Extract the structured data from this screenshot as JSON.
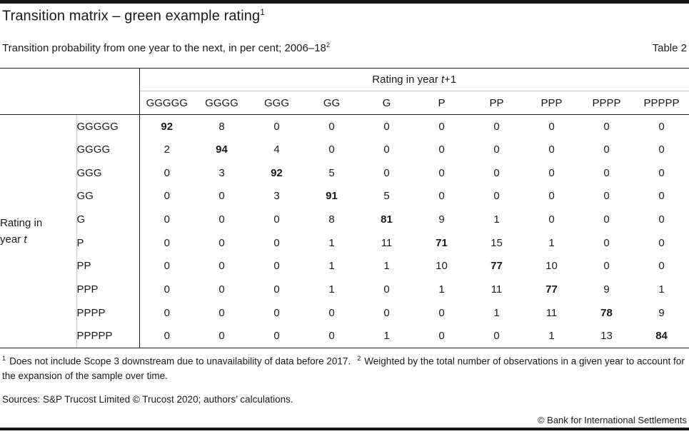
{
  "page": {
    "title": {
      "text": "Transition matrix – green example rating",
      "sup": "1"
    },
    "subtitle": {
      "text": "Transition probability from one year to the next, in per cent; 2006–18",
      "sup": "2"
    },
    "table_label": "Table 2"
  },
  "matrix": {
    "col_group_header": {
      "prefix": "Rating in year ",
      "italic": "t",
      "suffix": "+1"
    },
    "row_group_header": {
      "line1": "Rating in",
      "line2_prefix": "year ",
      "line2_italic": "t"
    },
    "columns": [
      "GGGGG",
      "GGGG",
      "GGG",
      "GG",
      "G",
      "P",
      "PP",
      "PPP",
      "PPPP",
      "PPPPP"
    ],
    "rows": [
      {
        "label": "GGGGG",
        "values": [
          92,
          8,
          0,
          0,
          0,
          0,
          0,
          0,
          0,
          0
        ]
      },
      {
        "label": "GGGG",
        "values": [
          2,
          94,
          4,
          0,
          0,
          0,
          0,
          0,
          0,
          0
        ]
      },
      {
        "label": "GGG",
        "values": [
          0,
          3,
          92,
          5,
          0,
          0,
          0,
          0,
          0,
          0
        ]
      },
      {
        "label": "GG",
        "values": [
          0,
          0,
          3,
          91,
          5,
          0,
          0,
          0,
          0,
          0
        ]
      },
      {
        "label": "G",
        "values": [
          0,
          0,
          0,
          8,
          81,
          9,
          1,
          0,
          0,
          0
        ]
      },
      {
        "label": "P",
        "values": [
          0,
          0,
          0,
          1,
          11,
          71,
          15,
          1,
          0,
          0
        ]
      },
      {
        "label": "PP",
        "values": [
          0,
          0,
          0,
          1,
          1,
          10,
          77,
          10,
          0,
          0
        ]
      },
      {
        "label": "PPP",
        "values": [
          0,
          0,
          0,
          1,
          0,
          1,
          11,
          77,
          9,
          1
        ]
      },
      {
        "label": "PPPP",
        "values": [
          0,
          0,
          0,
          0,
          0,
          0,
          1,
          11,
          78,
          9
        ]
      },
      {
        "label": "PPPPP",
        "values": [
          0,
          0,
          0,
          0,
          1,
          0,
          0,
          1,
          13,
          84
        ]
      }
    ],
    "bold_diagonal": true
  },
  "footnotes": [
    {
      "marker": "1",
      "text": "Does not include Scope 3 downstream due to unavailability of data before 2017."
    },
    {
      "marker": "2",
      "text": "Weighted by the total number of observations in a given year to account for the expansion of the sample over time."
    }
  ],
  "sources": "Sources: S&P Trucost Limited © Trucost 2020; authors’ calculations.",
  "copyright": "© Bank for International Settlements",
  "colors": {
    "text": "#1a1a1a",
    "rule_dark": "#222222",
    "rule_light": "#c9c9c9",
    "bar": "#161616"
  }
}
